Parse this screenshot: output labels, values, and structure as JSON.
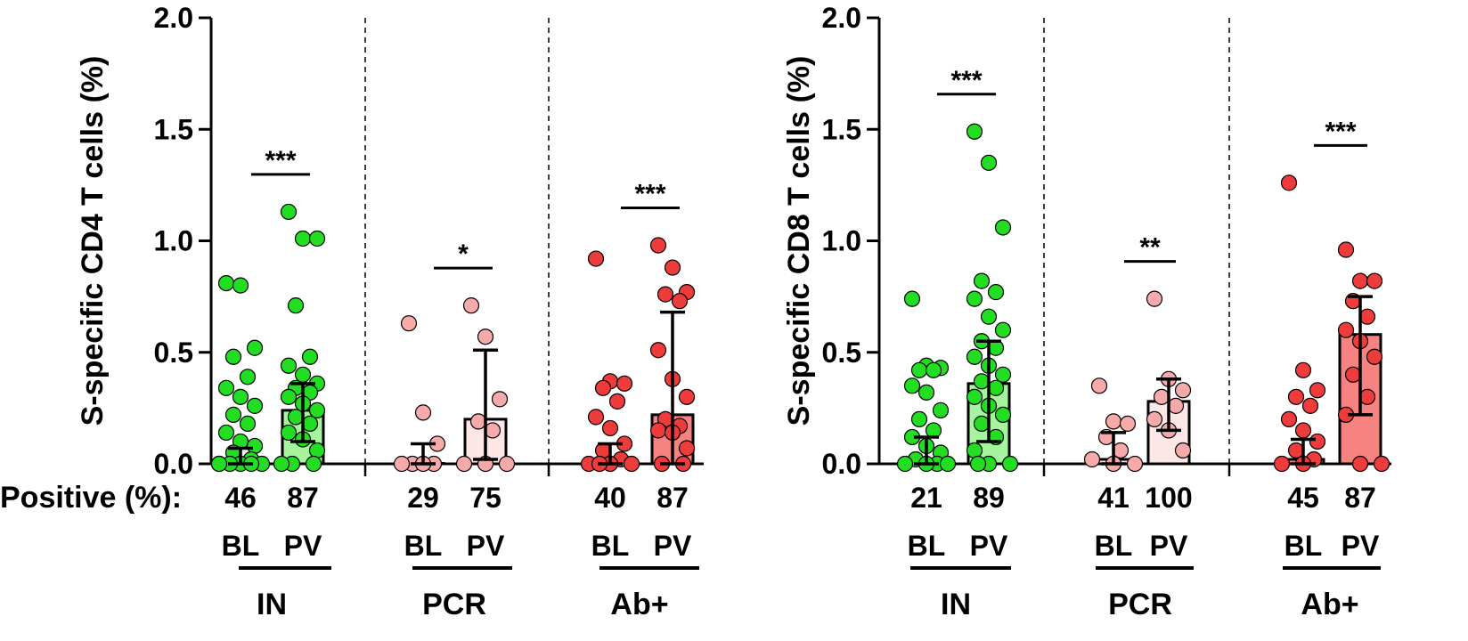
{
  "colors": {
    "IN_point": "#22dd22",
    "IN_bar": "#a6f59e",
    "PCR_point": "#f6aaaa",
    "PCR_bar": "#fde6e6",
    "Ab_point": "#ee3b3b",
    "Ab_bar": "#f68282",
    "stroke": "#000000"
  },
  "row_label": "Positive (%):",
  "chart_data": [
    {
      "type": "bar",
      "ylabel": "S-specific CD4 T cells (%)",
      "ylim": [
        0,
        2.0
      ],
      "yticks": [
        "0.0",
        "0.5",
        "1.0",
        "1.5",
        "2.0"
      ],
      "groups": [
        {
          "name": "IN",
          "colorKey": "IN",
          "sig": "***",
          "conditions": [
            {
              "label": "BL",
              "pct": "46",
              "bar": 0.02,
              "err_low": 0.0,
              "err_high": 0.07,
              "points": [
                0.81,
                0.8,
                0.52,
                0.48,
                0.39,
                0.34,
                0.3,
                0.26,
                0.22,
                0.18,
                0.14,
                0.1,
                0.08,
                0.05,
                0.02,
                0.0,
                0.0,
                0.0,
                0.0,
                0.0,
                0.0
              ]
            },
            {
              "label": "PV",
              "pct": "87",
              "bar": 0.24,
              "err_low": 0.1,
              "err_high": 0.36,
              "points": [
                1.13,
                1.01,
                1.01,
                0.71,
                0.48,
                0.44,
                0.4,
                0.36,
                0.34,
                0.32,
                0.3,
                0.27,
                0.24,
                0.21,
                0.18,
                0.14,
                0.11,
                0.06,
                0.0,
                0.0,
                0.0
              ]
            }
          ]
        },
        {
          "name": "PCR",
          "colorKey": "PCR",
          "sig": "*",
          "conditions": [
            {
              "label": "BL",
              "pct": "29",
              "bar": 0.0,
              "err_low": 0.0,
              "err_high": 0.09,
              "points": [
                0.63,
                0.23,
                0.09,
                0.0,
                0.0,
                0.0,
                0.0
              ]
            },
            {
              "label": "PV",
              "pct": "75",
              "bar": 0.2,
              "err_low": 0.02,
              "err_high": 0.51,
              "points": [
                0.71,
                0.57,
                0.29,
                0.19,
                0.15,
                0.0,
                0.0,
                0.0
              ]
            }
          ]
        },
        {
          "name": "Ab+",
          "colorKey": "Ab",
          "sig": "***",
          "conditions": [
            {
              "label": "BL",
              "pct": "40",
              "bar": 0.02,
              "err_low": 0.0,
              "err_high": 0.09,
              "points": [
                0.92,
                0.37,
                0.36,
                0.34,
                0.28,
                0.21,
                0.16,
                0.09,
                0.06,
                0.02,
                0.0,
                0.0,
                0.0,
                0.0
              ]
            },
            {
              "label": "PV",
              "pct": "87",
              "bar": 0.22,
              "err_low": 0.0,
              "err_high": 0.68,
              "points": [
                0.98,
                0.88,
                0.77,
                0.76,
                0.73,
                0.51,
                0.38,
                0.3,
                0.2,
                0.17,
                0.15,
                0.14,
                0.07,
                0.0,
                0.0
              ]
            }
          ]
        }
      ]
    },
    {
      "type": "bar",
      "ylabel": "S-specific CD8 T cells (%)",
      "ylim": [
        0,
        2.0
      ],
      "yticks": [
        "0.0",
        "0.5",
        "1.0",
        "1.5",
        "2.0"
      ],
      "groups": [
        {
          "name": "IN",
          "colorKey": "IN",
          "sig": "***",
          "conditions": [
            {
              "label": "BL",
              "pct": "21",
              "bar": 0.02,
              "err_low": 0.0,
              "err_high": 0.12,
              "points": [
                0.74,
                0.44,
                0.43,
                0.42,
                0.42,
                0.35,
                0.32,
                0.24,
                0.2,
                0.15,
                0.12,
                0.08,
                0.05,
                0.02,
                0.0,
                0.0,
                0.0,
                0.0
              ]
            },
            {
              "label": "PV",
              "pct": "89",
              "bar": 0.36,
              "err_low": 0.1,
              "err_high": 0.55,
              "points": [
                1.49,
                1.35,
                1.06,
                0.82,
                0.77,
                0.74,
                0.66,
                0.6,
                0.55,
                0.52,
                0.48,
                0.44,
                0.4,
                0.37,
                0.34,
                0.3,
                0.26,
                0.22,
                0.18,
                0.12,
                0.06,
                0.0,
                0.0,
                0.0
              ]
            }
          ]
        },
        {
          "name": "PCR",
          "colorKey": "PCR",
          "sig": "**",
          "conditions": [
            {
              "label": "BL",
              "pct": "41",
              "bar": 0.02,
              "err_low": 0.0,
              "err_high": 0.14,
              "points": [
                0.35,
                0.19,
                0.18,
                0.12,
                0.06,
                0.02,
                0.0,
                0.0
              ]
            },
            {
              "label": "PV",
              "pct": "100",
              "bar": 0.28,
              "err_low": 0.15,
              "err_high": 0.38,
              "points": [
                0.74,
                0.38,
                0.33,
                0.3,
                0.26,
                0.2,
                0.15,
                0.06
              ]
            }
          ]
        },
        {
          "name": "Ab+",
          "colorKey": "Ab",
          "sig": "***",
          "conditions": [
            {
              "label": "BL",
              "pct": "45",
              "bar": 0.02,
              "err_low": 0.0,
              "err_high": 0.11,
              "points": [
                1.26,
                0.42,
                0.33,
                0.3,
                0.26,
                0.2,
                0.15,
                0.1,
                0.06,
                0.02,
                0.0,
                0.0
              ]
            },
            {
              "label": "PV",
              "pct": "87",
              "bar": 0.58,
              "err_low": 0.22,
              "err_high": 0.75,
              "points": [
                0.96,
                0.82,
                0.82,
                0.73,
                0.66,
                0.6,
                0.55,
                0.48,
                0.4,
                0.3,
                0.22,
                0.0,
                0.0
              ]
            }
          ]
        }
      ]
    }
  ]
}
